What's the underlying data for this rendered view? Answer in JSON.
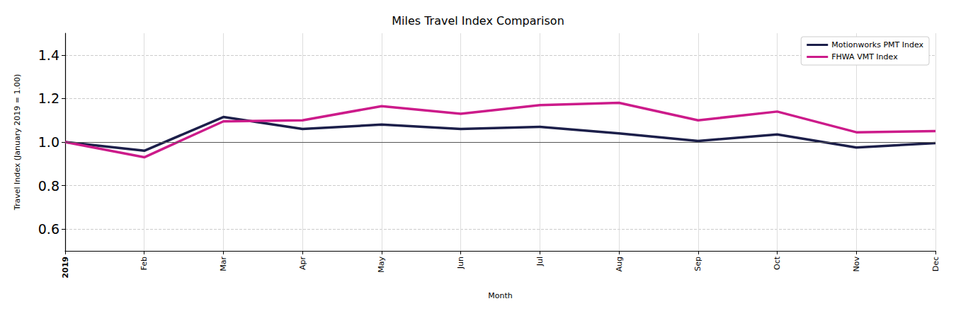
{
  "chart_data": {
    "type": "line",
    "title": "Miles Travel Index Comparison",
    "x_label": "Month",
    "y_label": "Travel Index (January 2019 = 1.00)",
    "categories": [
      "2019",
      "Feb",
      "Mar",
      "Apr",
      "May",
      "Jun",
      "Jul",
      "Aug",
      "Sep",
      "Oct",
      "Nov",
      "Dec"
    ],
    "series": [
      {
        "name": "Motionworks PMT Index",
        "color": "#1c1f4a",
        "values": [
          1.0,
          0.96,
          1.115,
          1.06,
          1.08,
          1.06,
          1.07,
          1.04,
          1.005,
          1.035,
          0.975,
          0.995
        ]
      },
      {
        "name": "FHWA VMT Index",
        "color": "#cc1b8a",
        "values": [
          1.0,
          0.93,
          1.095,
          1.1,
          1.165,
          1.13,
          1.17,
          1.18,
          1.1,
          1.14,
          1.045,
          1.05
        ]
      }
    ],
    "baseline": 1.0,
    "ylim": [
      0.5,
      1.5
    ],
    "yticks": [
      0.6,
      0.8,
      {
        "value": 1.0,
        "label": "1.0"
      },
      1.2,
      1.4
    ],
    "grid": true,
    "legend": "upper right"
  }
}
